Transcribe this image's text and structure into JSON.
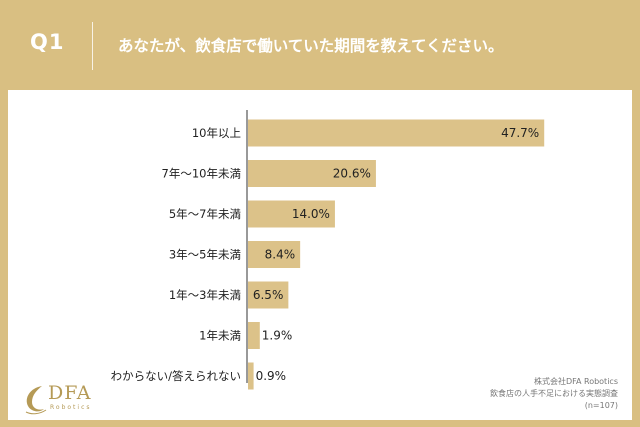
{
  "header": {
    "qnum": "Q1",
    "question": "あなたが、飲食店で働いていた期間を教えてください。"
  },
  "chart_data": {
    "type": "bar",
    "orientation": "horizontal",
    "categories": [
      "10年以上",
      "7年〜10年未満",
      "5年〜7年未満",
      "3年〜5年未満",
      "1年〜3年未満",
      "1年未満",
      "わからない/答えられない"
    ],
    "values": [
      47.7,
      20.6,
      14.0,
      8.4,
      6.5,
      1.9,
      0.9
    ],
    "value_labels": [
      "47.7%",
      "20.6%",
      "14.0%",
      "8.4%",
      "6.5%",
      "1.9%",
      "0.9%"
    ],
    "xlim": [
      0,
      100
    ],
    "bar_color": "#dcc289",
    "axis_color": "#333333"
  },
  "logo": {
    "name": "DFA",
    "sub": "Robotics"
  },
  "source": {
    "line1": "株式会社DFA Robotics",
    "line2": "飲食店の人手不足における実態調査",
    "line3": "(n=107)"
  }
}
